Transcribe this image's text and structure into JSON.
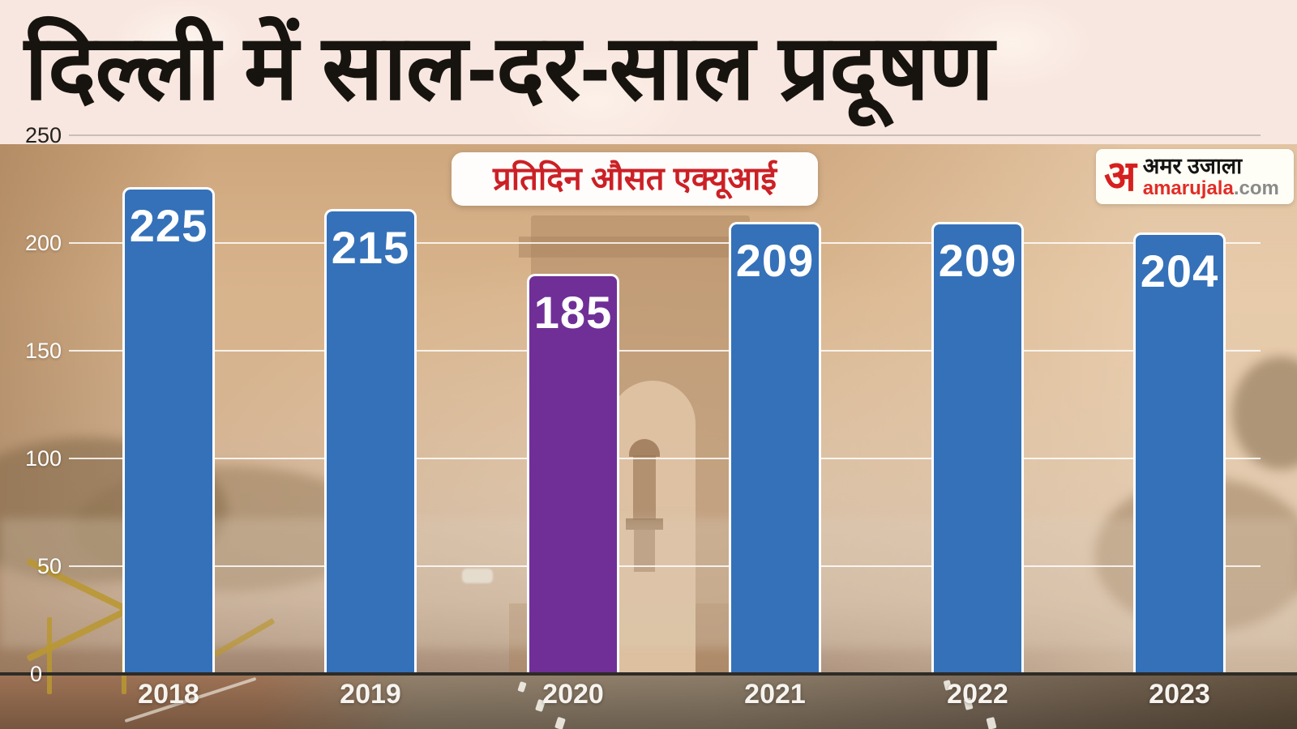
{
  "page": {
    "title": "दिल्ली में साल-दर-साल प्रदूषण"
  },
  "badge": {
    "label": "प्रतिदिन औसत एक्यूआई"
  },
  "logo": {
    "mark": "अ",
    "brand": "अमर उजाला",
    "site_red": "amarujala",
    "site_gray": ".com"
  },
  "chart_data": {
    "type": "bar",
    "title": "दिल्ली में साल-दर-साल प्रदूषण",
    "subtitle": "प्रतिदिन औसत एक्यूआई",
    "categories": [
      "2018",
      "2019",
      "2020",
      "2021",
      "2022",
      "2023"
    ],
    "values": [
      225,
      215,
      185,
      209,
      209,
      204
    ],
    "bar_colors": [
      "#3571b8",
      "#3571b8",
      "#6f2f97",
      "#3571b8",
      "#3571b8",
      "#3571b8"
    ],
    "highlight_category": "2020",
    "xlabel": "",
    "ylabel": "",
    "ylim": [
      0,
      250
    ],
    "yticks": [
      0,
      50,
      100,
      150,
      200,
      250
    ],
    "grid": true,
    "legend": "none",
    "value_label_color": "#ffffff"
  },
  "colors": {
    "header_bg": "#f8e7e0",
    "title_text": "#17130f",
    "bar_blue": "#3571b8",
    "bar_purple": "#6f2f97",
    "badge_text": "#cb2026",
    "logo_red": "#d6201f",
    "grid_top": "#c9bfb8",
    "grid_white": "rgba(255,255,255,0.82)",
    "baseline": "#2e2a26"
  }
}
